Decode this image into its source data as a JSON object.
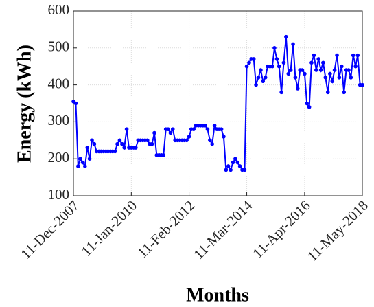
{
  "chart_data": {
    "type": "line",
    "xlabel": "Months",
    "ylabel": "Energy (kWh)",
    "x": [
      "11-Dec-2007",
      "11-Jan-2008",
      "11-Feb-2008",
      "11-Mar-2008",
      "11-Apr-2008",
      "11-May-2008",
      "11-Jun-2008",
      "11-Jul-2008",
      "11-Aug-2008",
      "11-Sep-2008",
      "11-Oct-2008",
      "11-Nov-2008",
      "11-Dec-2008",
      "11-Jan-2009",
      "11-Feb-2009",
      "11-Mar-2009",
      "11-Apr-2009",
      "11-May-2009",
      "11-Jun-2009",
      "11-Jul-2009",
      "11-Aug-2009",
      "11-Sep-2009",
      "11-Oct-2009",
      "11-Nov-2009",
      "11-Dec-2009",
      "11-Jan-2010",
      "11-Feb-2010",
      "11-Mar-2010",
      "11-Apr-2010",
      "11-May-2010",
      "11-Jun-2010",
      "11-Jul-2010",
      "11-Aug-2010",
      "11-Sep-2010",
      "11-Oct-2010",
      "11-Nov-2010",
      "11-Dec-2010",
      "11-Jan-2011",
      "11-Feb-2011",
      "11-Mar-2011",
      "11-Apr-2011",
      "11-May-2011",
      "11-Jun-2011",
      "11-Jul-2011",
      "11-Aug-2011",
      "11-Sep-2011",
      "11-Oct-2011",
      "11-Nov-2011",
      "11-Dec-2011",
      "11-Jan-2012",
      "11-Feb-2012",
      "11-Mar-2012",
      "11-Apr-2012",
      "11-May-2012",
      "11-Jun-2012",
      "11-Jul-2012",
      "11-Aug-2012",
      "11-Sep-2012",
      "11-Oct-2012",
      "11-Nov-2012",
      "11-Dec-2012",
      "11-Jan-2013",
      "11-Feb-2013",
      "11-Mar-2013",
      "11-Apr-2013",
      "11-May-2013",
      "11-Jun-2013",
      "11-Jul-2013",
      "11-Aug-2013",
      "11-Sep-2013",
      "11-Oct-2013",
      "11-Nov-2013",
      "11-Dec-2013",
      "11-Jan-2014",
      "11-Feb-2014",
      "11-Mar-2014",
      "11-Apr-2014",
      "11-May-2014",
      "11-Jun-2014",
      "11-Jul-2014",
      "11-Aug-2014",
      "11-Sep-2014",
      "11-Oct-2014",
      "11-Nov-2014",
      "11-Dec-2014",
      "11-Jan-2015",
      "11-Feb-2015",
      "11-Mar-2015",
      "11-Apr-2015",
      "11-May-2015",
      "11-Jun-2015",
      "11-Jul-2015",
      "11-Aug-2015",
      "11-Sep-2015",
      "11-Oct-2015",
      "11-Nov-2015",
      "11-Dec-2015",
      "11-Jan-2016",
      "11-Feb-2016",
      "11-Mar-2016",
      "11-Apr-2016",
      "11-May-2016",
      "11-Jun-2016",
      "11-Jul-2016",
      "11-Aug-2016",
      "11-Sep-2016",
      "11-Oct-2016",
      "11-Nov-2016",
      "11-Dec-2016",
      "11-Jan-2017",
      "11-Feb-2017",
      "11-Mar-2017",
      "11-Apr-2017",
      "11-May-2017",
      "11-Jun-2017",
      "11-Jul-2017",
      "11-Aug-2017",
      "11-Sep-2017",
      "11-Oct-2017",
      "11-Nov-2017",
      "11-Dec-2017",
      "11-Jan-2018",
      "11-Feb-2018",
      "11-Mar-2018",
      "11-Apr-2018",
      "11-May-2018"
    ],
    "series": [
      {
        "color": "#0000ff",
        "values": [
          355,
          350,
          180,
          200,
          190,
          180,
          230,
          200,
          250,
          240,
          220,
          220,
          220,
          220,
          220,
          220,
          220,
          220,
          220,
          240,
          250,
          240,
          230,
          280,
          230,
          230,
          230,
          230,
          250,
          250,
          250,
          250,
          250,
          240,
          240,
          270,
          210,
          210,
          210,
          210,
          280,
          280,
          270,
          280,
          250,
          250,
          250,
          250,
          250,
          250,
          260,
          280,
          280,
          290,
          290,
          290,
          290,
          290,
          280,
          250,
          240,
          290,
          280,
          280,
          280,
          260,
          170,
          180,
          170,
          190,
          200,
          190,
          180,
          170,
          170,
          450,
          460,
          470,
          470,
          400,
          420,
          440,
          410,
          420,
          450,
          450,
          450,
          500,
          470,
          450,
          380,
          460,
          530,
          430,
          440,
          510,
          420,
          390,
          440,
          440,
          430,
          350,
          340,
          460,
          480,
          440,
          470,
          440,
          460,
          420,
          380,
          430,
          410,
          440,
          480,
          420,
          450,
          380,
          440,
          440,
          420,
          480,
          450,
          480,
          400,
          400
        ]
      }
    ],
    "xlim": [
      "11-Dec-2007",
      "11-May-2018"
    ],
    "xticks": [
      "11-Dec-2007",
      "11-Jan-2010",
      "11-Feb-2012",
      "11-Mar-2014",
      "11-Apr-2016",
      "11-May-2018"
    ],
    "ylim": [
      100,
      600
    ],
    "yticks": [
      100,
      200,
      300,
      400,
      500,
      600
    ],
    "grid": true
  }
}
